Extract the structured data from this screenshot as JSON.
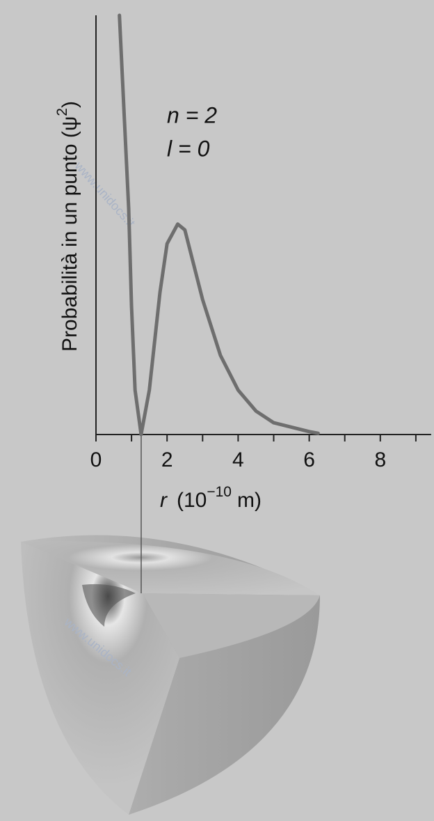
{
  "chart_data": {
    "type": "line",
    "ylabel": {
      "text": "Probabilità in un punto (ψ",
      "exponent": "2",
      "close": ")"
    },
    "xlabel": {
      "symbol": "r",
      "unit_base": "(10",
      "unit_exponent": "−10",
      "unit_rest": "m)"
    },
    "annotations": [
      "n = 2",
      "l = 0"
    ],
    "watermark": "www.unidocs.it",
    "xlim": [
      0,
      9.43
    ],
    "ylim": [
      0,
      100
    ],
    "xticks": [
      0,
      2,
      4,
      6,
      8
    ],
    "xminor": [
      1,
      3,
      5,
      7,
      9
    ],
    "series": [
      {
        "color": "#6e6e6e",
        "x": [
          0.66,
          0.8,
          0.92,
          1.0,
          1.1,
          1.27,
          1.5,
          1.8,
          2.0,
          2.3,
          2.5,
          3.0,
          3.5,
          4.0,
          4.5,
          5.0,
          6.0,
          6.25
        ],
        "values": [
          100,
          75,
          54,
          30.6,
          10.6,
          0,
          10.6,
          33.9,
          45.5,
          50.2,
          48.8,
          32.2,
          18.9,
          10.6,
          5.6,
          2.8,
          0.7,
          0.3
        ]
      }
    ]
  }
}
